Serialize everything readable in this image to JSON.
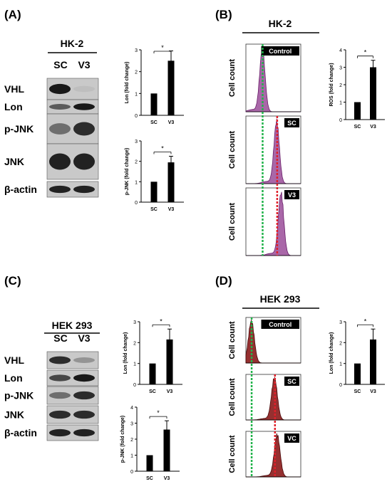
{
  "panels": {
    "A": {
      "label": "(A)",
      "cell_line": "HK-2",
      "lanes": [
        "SC",
        "V3"
      ],
      "blots": [
        {
          "name": "VHL",
          "bands": [
            0.95,
            0.08
          ]
        },
        {
          "name": "Lon",
          "bands": [
            0.6,
            0.95
          ]
        },
        {
          "name": "p-JNK",
          "bands": [
            0.5,
            0.85
          ]
        },
        {
          "name": "JNK",
          "bands": [
            0.9,
            0.9
          ]
        },
        {
          "name": "β-actin",
          "bands": [
            0.9,
            0.9
          ]
        }
      ],
      "charts": [
        {
          "ylabel": "Lon (fold change)",
          "categories": [
            "SC",
            "V3"
          ],
          "values": [
            1.0,
            2.5
          ],
          "errors": [
            0,
            0.45
          ],
          "ylim": [
            0,
            3
          ],
          "yticks": [
            "0",
            "1",
            "2",
            "3"
          ],
          "sig": "*"
        },
        {
          "ylabel": "p-JNK (fold change)",
          "categories": [
            "SC",
            "V3"
          ],
          "values": [
            1.0,
            1.95
          ],
          "errors": [
            0,
            0.3
          ],
          "ylim": [
            0,
            3
          ],
          "yticks": [
            "0",
            "1",
            "2",
            "3"
          ],
          "sig": "*"
        }
      ]
    },
    "B": {
      "label": "(B)",
      "cell_line": "HK-2",
      "ylabel": "Cell count",
      "histograms": [
        {
          "tag": "Control",
          "peak": 0.3
        },
        {
          "tag": "SC",
          "peak": 0.56
        },
        {
          "tag": "V3",
          "peak": 0.64
        }
      ],
      "chart": {
        "ylabel": "ROS (fold change)",
        "categories": [
          "SC",
          "V3"
        ],
        "values": [
          1.0,
          3.0
        ],
        "errors": [
          0,
          0.4
        ],
        "ylim": [
          0,
          4
        ],
        "yticks": [
          "0",
          "1",
          "2",
          "3",
          "4"
        ],
        "sig": "*"
      }
    },
    "C": {
      "label": "(C)",
      "cell_line": "HEK 293",
      "lanes": [
        "SC",
        "V3"
      ],
      "blots": [
        {
          "name": "VHL",
          "bands": [
            0.85,
            0.3
          ]
        },
        {
          "name": "Lon",
          "bands": [
            0.7,
            0.95
          ]
        },
        {
          "name": "p-JNK",
          "bands": [
            0.5,
            0.85
          ]
        },
        {
          "name": "JNK",
          "bands": [
            0.85,
            0.85
          ]
        },
        {
          "name": "β-actin",
          "bands": [
            0.9,
            0.9
          ]
        }
      ],
      "charts": [
        {
          "ylabel": "Lon (fold change)",
          "categories": [
            "SC",
            "V3"
          ],
          "values": [
            1.0,
            2.15
          ],
          "errors": [
            0,
            0.5
          ],
          "ylim": [
            0,
            3
          ],
          "yticks": [
            "0",
            "1",
            "2",
            "3"
          ],
          "sig": "*"
        },
        {
          "ylabel": "p-JNK (fold change)",
          "categories": [
            "SC",
            "V3"
          ],
          "values": [
            1.0,
            2.6
          ],
          "errors": [
            0,
            0.55
          ],
          "ylim": [
            0,
            4
          ],
          "yticks": [
            "0",
            "1",
            "2",
            "3",
            "4"
          ],
          "sig": "*"
        }
      ]
    },
    "D": {
      "label": "(D)",
      "cell_line": "HEK 293",
      "ylabel": "Cell count",
      "histograms": [
        {
          "tag": "Control",
          "peak": 0.1
        },
        {
          "tag": "SC",
          "peak": 0.52
        },
        {
          "tag": "VC",
          "peak": 0.57
        }
      ],
      "chart": {
        "ylabel": "Lon (fold change)",
        "categories": [
          "SC",
          "V3"
        ],
        "values": [
          1.0,
          2.15
        ],
        "errors": [
          0,
          0.5
        ],
        "ylim": [
          0,
          3
        ],
        "yticks": [
          "0",
          "1",
          "2",
          "3"
        ],
        "sig": "*"
      }
    }
  },
  "chart_data": [
    {
      "type": "bar",
      "ylabel": "Lon (fold change)",
      "categories": [
        "SC",
        "V3"
      ],
      "values": [
        1.0,
        2.5
      ],
      "ylim": [
        0,
        3
      ]
    },
    {
      "type": "bar",
      "ylabel": "p-JNK (fold change)",
      "categories": [
        "SC",
        "V3"
      ],
      "values": [
        1.0,
        1.95
      ],
      "ylim": [
        0,
        3
      ]
    },
    {
      "type": "bar",
      "ylabel": "ROS (fold change)",
      "categories": [
        "SC",
        "V3"
      ],
      "values": [
        1.0,
        3.0
      ],
      "ylim": [
        0,
        4
      ]
    },
    {
      "type": "bar",
      "ylabel": "Lon (fold change)",
      "categories": [
        "SC",
        "V3"
      ],
      "values": [
        1.0,
        2.15
      ],
      "ylim": [
        0,
        3
      ]
    },
    {
      "type": "bar",
      "ylabel": "p-JNK (fold change)",
      "categories": [
        "SC",
        "V3"
      ],
      "values": [
        1.0,
        2.6
      ],
      "ylim": [
        0,
        4
      ]
    },
    {
      "type": "bar",
      "ylabel": "Lon (fold change)",
      "categories": [
        "SC",
        "V3"
      ],
      "values": [
        1.0,
        2.15
      ],
      "ylim": [
        0,
        3
      ]
    }
  ],
  "colors": {
    "purple_fill": "#a0569e",
    "purple_line": "#6a1f6a",
    "red_fill": "#8a1a1a",
    "green_line": "#21b34a",
    "red_line": "#e0202a"
  }
}
